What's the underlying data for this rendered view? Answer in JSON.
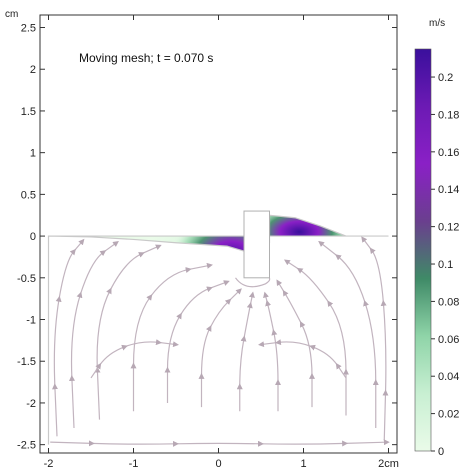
{
  "chart_data": {
    "type": "heatmap",
    "annotation": "Moving mesh; t = 0.070 s",
    "axis_unit": "cm",
    "colorbar_unit": "m/s",
    "xlim": [
      -2.1,
      2.1
    ],
    "ylim": [
      -2.6,
      2.65
    ],
    "xticks": [
      -2,
      -1,
      0,
      1,
      2
    ],
    "xtick_labels": [
      "-2",
      "-1",
      "0",
      "1",
      "2cm"
    ],
    "yticks": [
      2.5,
      2,
      1.5,
      1,
      0.5,
      0,
      -0.5,
      -1,
      -1.5,
      -2,
      -2.5
    ],
    "ytick_labels": [
      "2.5",
      "2",
      "1.5",
      "1",
      "0.5",
      "0",
      "-0.5",
      "-1",
      "-1.5",
      "-2",
      "-2.5"
    ],
    "colorbar": {
      "min": 0,
      "max": 0.215,
      "ticks": [
        0,
        0.02,
        0.04,
        0.06,
        0.08,
        0.1,
        0.12,
        0.14,
        0.16,
        0.18,
        0.2
      ],
      "tick_labels": [
        "0",
        "0.02",
        "0.04",
        "0.06",
        "0.08",
        "0.1",
        "0.12",
        "0.14",
        "0.16",
        "0.18",
        "0.2"
      ],
      "colors": [
        "#eafbe9",
        "#c8efd2",
        "#8fd4a8",
        "#3f8a67",
        "#6a3f8e",
        "#8a20c6",
        "#6c1ab4",
        "#3a0f9c"
      ]
    },
    "domain": {
      "fluid_region": {
        "x": [
          -2,
          2
        ],
        "y": [
          -2.5,
          0
        ]
      },
      "free_surface_left": [
        [
          -2,
          0
        ],
        [
          -1.5,
          -0.01
        ],
        [
          -1,
          -0.04
        ],
        [
          -0.5,
          -0.08
        ],
        [
          0.1,
          -0.12
        ],
        [
          0.3,
          -0.18
        ]
      ],
      "free_surface_right": [
        [
          0.6,
          -0.08
        ],
        [
          0.6,
          0.25
        ],
        [
          0.9,
          0.22
        ],
        [
          1.2,
          0.12
        ],
        [
          1.5,
          0
        ],
        [
          2,
          0
        ]
      ],
      "paddle": {
        "x": [
          0.3,
          0.6
        ],
        "y": [
          -0.5,
          0.3
        ]
      }
    }
  },
  "colors": {
    "streamline": "#c2b4bf",
    "fluid_base": "#eafbe9",
    "frame": "#333333"
  }
}
